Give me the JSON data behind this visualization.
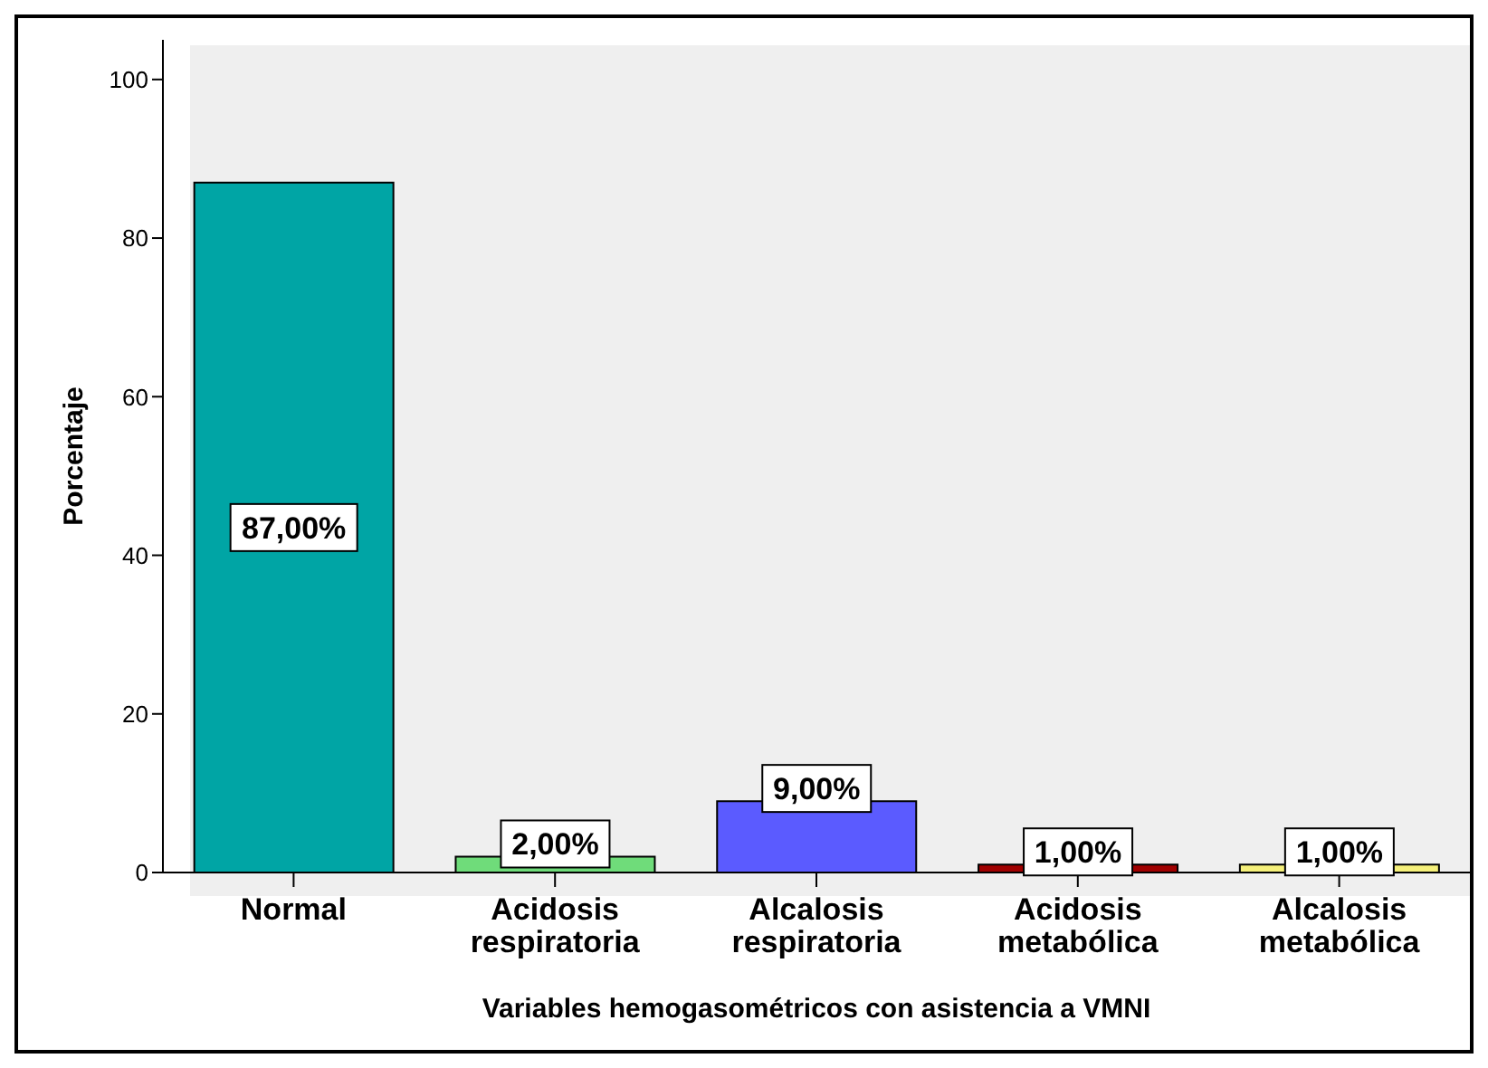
{
  "chart_data": {
    "type": "bar",
    "xlabel": "Variables hemogasométricos con asistencia a VMNI",
    "ylabel": "Porcentaje",
    "categories": [
      "Normal",
      "Acidosis respiratoria",
      "Alcalosis respiratoria",
      "Acidosis metabólica",
      "Alcalosis metabólica"
    ],
    "values": [
      87,
      2,
      9,
      1,
      1
    ],
    "colors": [
      "#00a5a5",
      "#6fdc7a",
      "#5b5bff",
      "#a00000",
      "#f5f07a"
    ],
    "value_labels": [
      "87,00%",
      "2,00%",
      "9,00%",
      "1,00%",
      "1,00%"
    ],
    "ylim": [
      0,
      105
    ],
    "yticks": [
      0,
      20,
      40,
      60,
      80,
      100
    ],
    "grid": false,
    "legend": false
  }
}
